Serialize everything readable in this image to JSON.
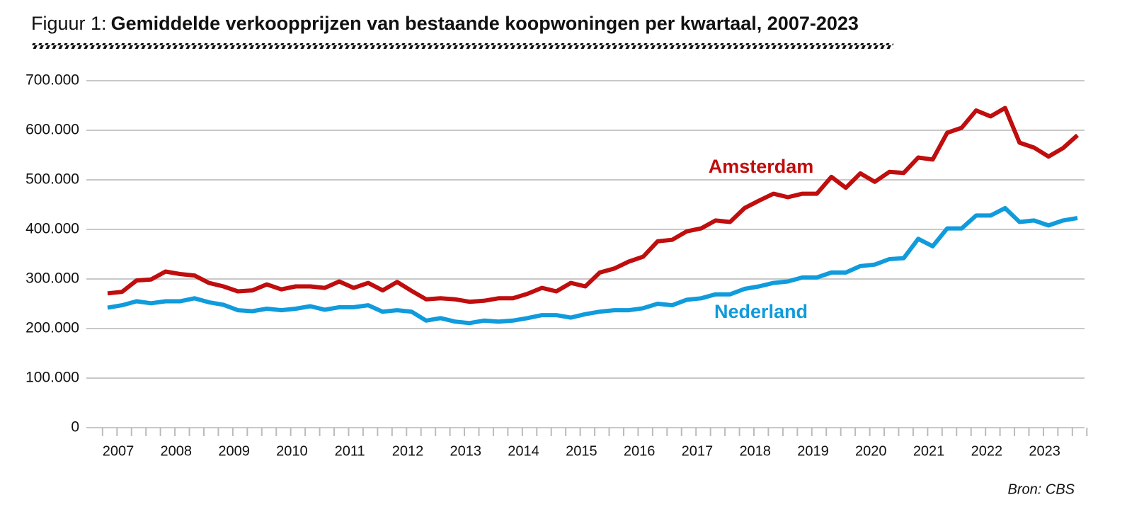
{
  "chart_data": {
    "type": "line",
    "title_prefix": "Figuur 1:",
    "title": "Gemiddelde verkoopprijzen van bestaande koopwoningen per kwartaal, 2007-2023",
    "source": "Bron: CBS",
    "categories": [
      "2007",
      null,
      null,
      null,
      "2008",
      null,
      null,
      null,
      "2009",
      null,
      null,
      null,
      "2010",
      null,
      null,
      null,
      "2011",
      null,
      null,
      null,
      "2012",
      null,
      null,
      null,
      "2013",
      null,
      null,
      null,
      "2014",
      null,
      null,
      null,
      "2015",
      null,
      null,
      null,
      "2016",
      null,
      null,
      null,
      "2017",
      null,
      null,
      null,
      "2018",
      null,
      null,
      null,
      "2019",
      null,
      null,
      null,
      "2020",
      null,
      null,
      null,
      "2021",
      null,
      null,
      null,
      "2022",
      null,
      null,
      null,
      "2023",
      null,
      null,
      null
    ],
    "series": [
      {
        "name": "Amsterdam",
        "color": "#c00d0d",
        "values": [
          271000,
          274000,
          297000,
          299000,
          315000,
          310000,
          307000,
          292000,
          285000,
          275000,
          277000,
          289000,
          279000,
          285000,
          285000,
          282000,
          295000,
          282000,
          292000,
          277000,
          294000,
          276000,
          259000,
          261000,
          259000,
          254000,
          256000,
          261000,
          261000,
          270000,
          282000,
          275000,
          292000,
          285000,
          313000,
          321000,
          335000,
          345000,
          376000,
          379000,
          396000,
          402000,
          418000,
          415000,
          443000,
          458000,
          472000,
          465000,
          472000,
          472000,
          506000,
          484000,
          513000,
          496000,
          516000,
          514000,
          545000,
          541000,
          595000,
          605000,
          640000,
          628000,
          645000,
          575000,
          565000,
          547000,
          564000,
          590000
        ]
      },
      {
        "name": "Nederland",
        "color": "#0f9bdc",
        "values": [
          242000,
          247000,
          255000,
          251000,
          255000,
          255000,
          261000,
          253000,
          248000,
          237000,
          235000,
          240000,
          237000,
          240000,
          245000,
          238000,
          243000,
          243000,
          247000,
          234000,
          237000,
          234000,
          216000,
          221000,
          214000,
          211000,
          216000,
          214000,
          216000,
          221000,
          227000,
          227000,
          222000,
          229000,
          234000,
          237000,
          237000,
          241000,
          250000,
          247000,
          258000,
          261000,
          269000,
          269000,
          280000,
          285000,
          292000,
          295000,
          303000,
          303000,
          313000,
          313000,
          326000,
          329000,
          340000,
          342000,
          381000,
          366000,
          402000,
          402000,
          428000,
          428000,
          443000,
          415000,
          418000,
          408000,
          418000,
          423000
        ]
      }
    ],
    "ylim": [
      0,
      700000
    ],
    "yticks": [
      0,
      {
        "value": 100000,
        "label": "100.000"
      },
      {
        "value": 200000,
        "label": "200.000"
      },
      {
        "value": 300000,
        "label": "300.000"
      },
      {
        "value": 400000,
        "label": "400.000"
      },
      {
        "value": 500000,
        "label": "500.000"
      },
      {
        "value": 600000,
        "label": "600.000"
      },
      {
        "value": 700000,
        "label": "700.000"
      }
    ],
    "grid": true
  }
}
